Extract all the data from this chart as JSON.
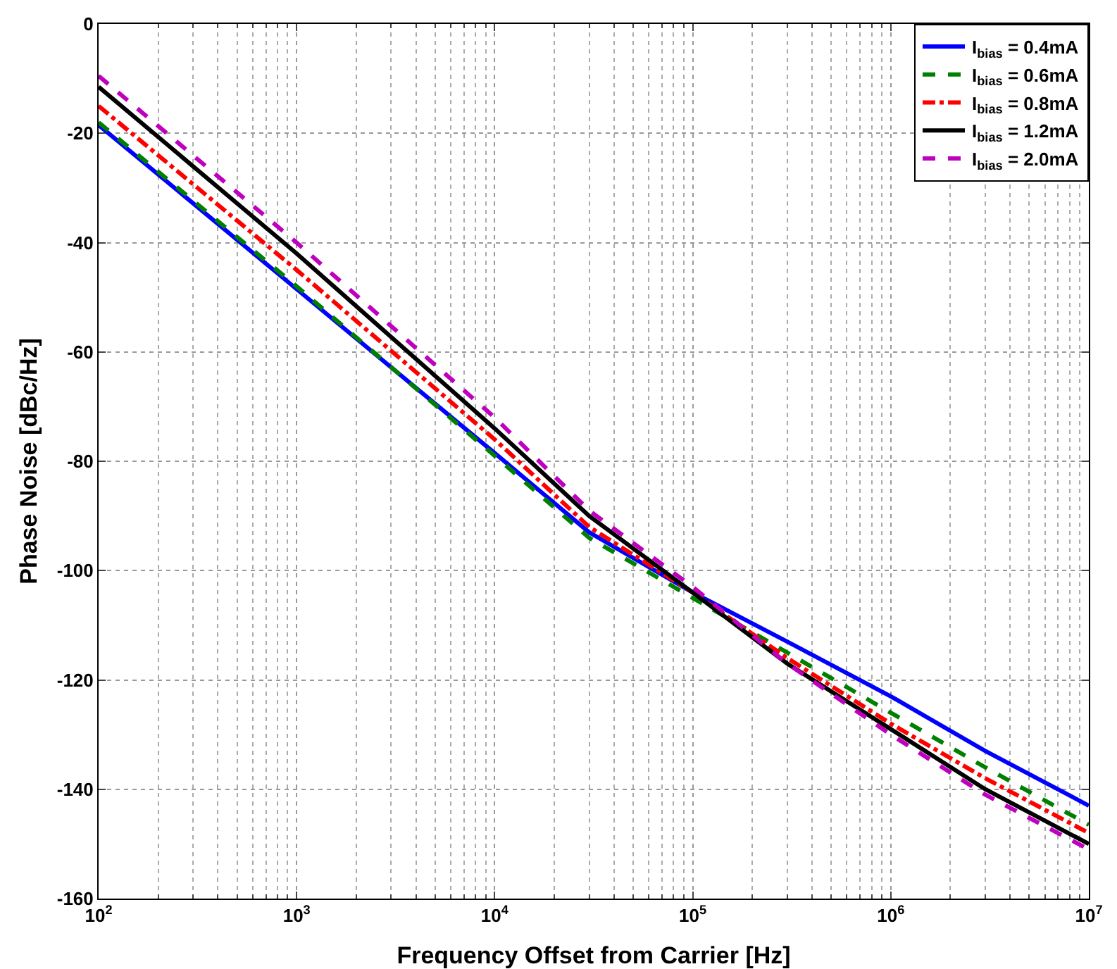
{
  "chart_data": {
    "type": "line",
    "xlabel": "Frequency Offset from Carrier [Hz]",
    "ylabel": "Phase Noise [dBc/Hz]",
    "x": [
      100,
      1000,
      10000,
      30000,
      100000,
      300000,
      1000000,
      3000000,
      10000000
    ],
    "series": [
      {
        "name": "I$_{bias}$ = 0.4mA",
        "color": "#0000ff",
        "line_style": "solid",
        "values": [
          -18.5,
          -48.5,
          -78.5,
          -93,
          -104,
          -113,
          -123,
          -133,
          -143
        ]
      },
      {
        "name": "I$_{bias}$ = 0.6mA",
        "color": "#008000",
        "line_style": "dashed",
        "values": [
          -18,
          -48,
          -79,
          -94,
          -105,
          -115,
          -126,
          -136,
          -146.5
        ]
      },
      {
        "name": "I$_{bias}$ = 0.8mA",
        "color": "#ff0000",
        "line_style": "dashdot",
        "values": [
          -15,
          -45,
          -76,
          -92,
          -104,
          -116,
          -128,
          -138,
          -148
        ]
      },
      {
        "name": "I$_{bias}$ = 1.2mA",
        "color": "#000000",
        "line_style": "solid",
        "values": [
          -11.5,
          -42,
          -74,
          -90,
          -104,
          -117,
          -129,
          -140,
          -150
        ]
      },
      {
        "name": "I$_{bias}$ = 2.0mA",
        "color": "#bf00bf",
        "line_style": "dashed",
        "values": [
          -9.5,
          -40,
          -72,
          -89,
          -103,
          -117,
          -130,
          -141,
          -151
        ]
      }
    ],
    "log": "x",
    "xlim": [
      100,
      10000000
    ],
    "ylim": [
      -160,
      0
    ],
    "xticks": [
      {
        "value": 100,
        "label": "10$^{2}$"
      },
      {
        "value": 1000,
        "label": "10$^{3}$"
      },
      {
        "value": 10000,
        "label": "10$^{4}$"
      },
      {
        "value": 100000,
        "label": "10$^{5}$"
      },
      {
        "value": 1000000,
        "label": "10$^{6}$"
      },
      {
        "value": 10000000,
        "label": "10$^{7}$"
      }
    ],
    "yticks": [
      -160,
      -140,
      -120,
      -100,
      -80,
      -60,
      -40,
      -20,
      0
    ],
    "grid": true,
    "legend": "top right",
    "marker": "none"
  }
}
